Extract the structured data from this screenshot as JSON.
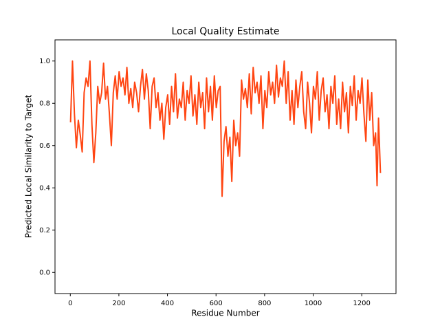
{
  "chart_data": {
    "type": "line",
    "title": "Local Quality Estimate",
    "xlabel": "Residue Number",
    "ylabel": "Predicted Local Similarity to Target",
    "x": [
      1,
      9,
      17,
      25,
      33,
      41,
      49,
      57,
      65,
      73,
      81,
      89,
      97,
      105,
      113,
      121,
      129,
      137,
      145,
      153,
      161,
      169,
      177,
      185,
      193,
      201,
      209,
      217,
      225,
      233,
      241,
      249,
      257,
      265,
      273,
      281,
      289,
      297,
      305,
      313,
      321,
      329,
      337,
      345,
      353,
      361,
      369,
      377,
      385,
      393,
      401,
      409,
      417,
      425,
      433,
      441,
      449,
      457,
      465,
      473,
      481,
      489,
      497,
      505,
      513,
      521,
      529,
      537,
      545,
      553,
      561,
      569,
      577,
      585,
      593,
      601,
      609,
      617,
      625,
      633,
      641,
      649,
      657,
      665,
      673,
      681,
      689,
      697,
      705,
      713,
      721,
      729,
      737,
      745,
      753,
      761,
      769,
      777,
      785,
      793,
      801,
      809,
      817,
      825,
      833,
      841,
      849,
      857,
      865,
      873,
      881,
      889,
      897,
      905,
      913,
      921,
      929,
      937,
      945,
      953,
      961,
      969,
      977,
      985,
      993,
      1001,
      1009,
      1017,
      1025,
      1033,
      1041,
      1049,
      1057,
      1065,
      1073,
      1081,
      1089,
      1097,
      1105,
      1113,
      1121,
      1129,
      1137,
      1145,
      1153,
      1161,
      1169,
      1177,
      1185,
      1193,
      1201,
      1209,
      1217,
      1225,
      1233,
      1241,
      1249,
      1257,
      1263,
      1269,
      1277
    ],
    "series": [
      {
        "color": "#ff4512",
        "values": [
          0.71,
          1.0,
          0.75,
          0.59,
          0.72,
          0.65,
          0.57,
          0.85,
          0.92,
          0.88,
          1.0,
          0.7,
          0.52,
          0.66,
          0.88,
          0.8,
          0.85,
          0.99,
          0.82,
          0.88,
          0.75,
          0.6,
          0.85,
          0.93,
          0.82,
          0.95,
          0.88,
          0.92,
          0.84,
          0.97,
          0.8,
          0.87,
          0.78,
          0.9,
          0.85,
          0.76,
          0.88,
          0.96,
          0.82,
          0.94,
          0.86,
          0.68,
          0.88,
          0.92,
          0.78,
          0.85,
          0.72,
          0.8,
          0.63,
          0.78,
          0.84,
          0.7,
          0.88,
          0.76,
          0.94,
          0.73,
          0.82,
          0.78,
          0.9,
          0.72,
          0.86,
          0.8,
          0.93,
          0.74,
          0.84,
          0.7,
          0.9,
          0.78,
          0.85,
          0.68,
          0.92,
          0.76,
          0.88,
          0.72,
          0.93,
          0.78,
          0.86,
          0.88,
          0.36,
          0.62,
          0.69,
          0.55,
          0.64,
          0.43,
          0.72,
          0.6,
          0.66,
          0.55,
          0.91,
          0.82,
          0.87,
          0.78,
          0.94,
          0.75,
          0.97,
          0.85,
          0.9,
          0.8,
          0.93,
          0.68,
          0.86,
          0.78,
          0.95,
          0.84,
          0.9,
          0.8,
          0.98,
          0.83,
          0.92,
          0.88,
          1.0,
          0.8,
          0.95,
          0.72,
          0.86,
          0.7,
          0.91,
          0.78,
          0.88,
          0.95,
          0.76,
          0.68,
          0.9,
          0.8,
          0.66,
          0.88,
          0.82,
          0.95,
          0.72,
          0.86,
          0.92,
          0.76,
          0.84,
          0.68,
          0.88,
          0.8,
          0.93,
          0.7,
          0.82,
          0.68,
          0.9,
          0.76,
          0.85,
          0.66,
          0.88,
          0.79,
          0.93,
          0.72,
          0.86,
          0.8,
          0.92,
          0.75,
          0.62,
          0.91,
          0.72,
          0.85,
          0.6,
          0.66,
          0.41,
          0.73,
          0.47
        ]
      }
    ],
    "xlim": [
      -63,
      1341
    ],
    "xticks": [
      0,
      200,
      400,
      600,
      800,
      1000,
      1200
    ],
    "ylim": [
      -0.1,
      1.1
    ],
    "yticks": [
      {
        "value": 0,
        "label": "0.0"
      },
      0.2,
      0.4,
      0.6,
      0.8,
      {
        "value": 1,
        "label": "1.0"
      }
    ],
    "grid": false
  }
}
